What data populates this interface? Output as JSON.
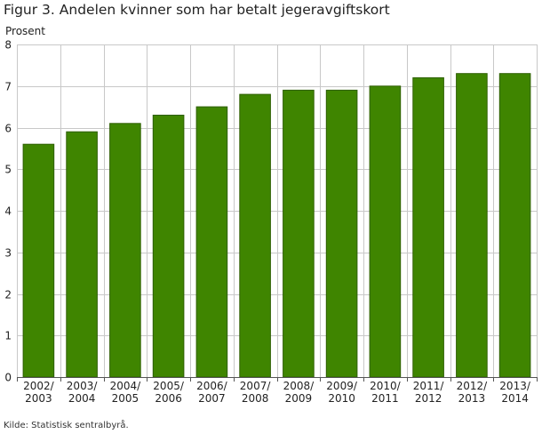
{
  "figure": {
    "title": "Figur 3. Andelen kvinner som har betalt jegeravgiftskort",
    "source": "Kilde: Statistisk sentralbyrå."
  },
  "colors": {
    "bar": "#3f8500",
    "bar_stroke": "#2d5f00",
    "grid": "#c8c8c8",
    "axis": "#555555"
  },
  "chart_data": {
    "type": "bar",
    "title": "Figur 3. Andelen kvinner som har betalt jegeravgiftskort",
    "ylabel": "Prosent",
    "xlabel": "",
    "ylim": [
      0,
      8
    ],
    "yticks": [
      0,
      1,
      2,
      3,
      4,
      5,
      6,
      7,
      8
    ],
    "grid": true,
    "categories": [
      [
        "2002/",
        "2003"
      ],
      [
        "2003/",
        "2004"
      ],
      [
        "2004/",
        "2005"
      ],
      [
        "2005/",
        "2006"
      ],
      [
        "2006/",
        "2007"
      ],
      [
        "2007/",
        "2008"
      ],
      [
        "2008/",
        "2009"
      ],
      [
        "2009/",
        "2010"
      ],
      [
        "2010/",
        "2011"
      ],
      [
        "2011/",
        "2012"
      ],
      [
        "2012/",
        "2013"
      ],
      [
        "2013/",
        "2014"
      ]
    ],
    "values": [
      5.6,
      5.9,
      6.1,
      6.3,
      6.5,
      6.8,
      6.9,
      6.9,
      7.0,
      7.2,
      7.3,
      7.3
    ]
  }
}
